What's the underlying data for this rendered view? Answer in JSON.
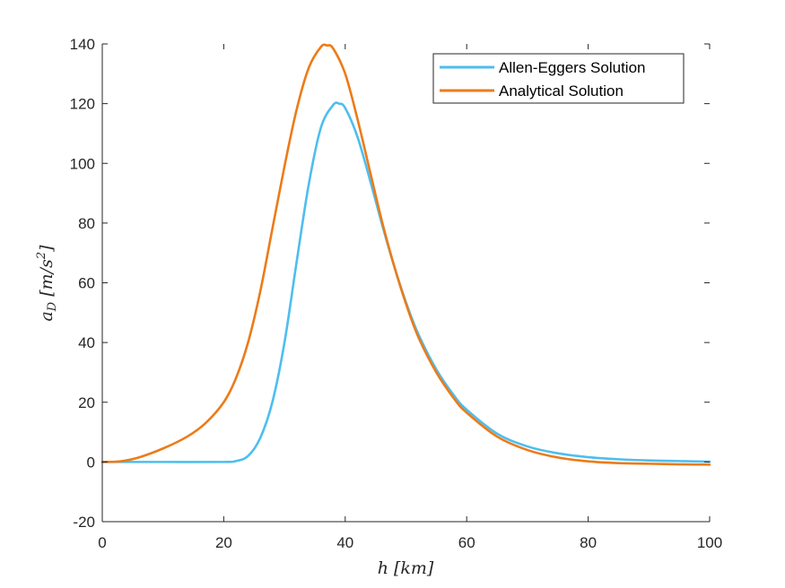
{
  "chart_data": {
    "type": "line",
    "xlabel": "h [km]",
    "ylabel": "a_D [m/s^2]",
    "xlabel_parts": {
      "var": "h",
      "unit": "[km]"
    },
    "ylabel_parts": {
      "var": "a",
      "sub": "D",
      "unit_open": "[m/s",
      "unit_sup": "2",
      "unit_close": "]"
    },
    "xlim": [
      0,
      100
    ],
    "ylim": [
      -20,
      140
    ],
    "xticks": [
      0,
      20,
      40,
      60,
      80,
      100
    ],
    "yticks": [
      -20,
      0,
      20,
      40,
      60,
      80,
      100,
      120,
      140
    ],
    "grid": false,
    "legend_location": "top-right",
    "series": [
      {
        "name": "Allen-Eggers Solution",
        "color": "#4DBEEE",
        "x": [
          0,
          10,
          20,
          22,
          24,
          26,
          28,
          30,
          32,
          34,
          36,
          38,
          39,
          40,
          42,
          44,
          46,
          48,
          50,
          52,
          55,
          58,
          60,
          65,
          70,
          75,
          80,
          85,
          90,
          95,
          100
        ],
        "y": [
          0,
          0,
          0,
          0.3,
          2,
          8,
          20,
          40,
          67,
          93,
          112,
          119.5,
          120,
          118.5,
          109,
          95,
          80,
          66,
          53.5,
          43,
          31,
          22,
          17.5,
          9.5,
          5.2,
          2.9,
          1.6,
          0.9,
          0.5,
          0.3,
          0.1
        ]
      },
      {
        "name": "Analytical Solution",
        "color": "#EC7B19",
        "x": [
          0,
          3,
          6,
          10,
          14,
          17,
          20,
          22,
          24,
          26,
          28,
          30,
          32,
          34,
          36,
          37,
          38,
          40,
          42,
          44,
          46,
          48,
          50,
          52,
          55,
          58,
          60,
          65,
          70,
          75,
          80,
          85,
          90,
          95,
          100
        ],
        "y": [
          0,
          0.2,
          1.5,
          4.5,
          8.5,
          13,
          20,
          28,
          40,
          57,
          78,
          99,
          118,
          132,
          139,
          139.5,
          138.5,
          130,
          115,
          98,
          81,
          66,
          53,
          42,
          30,
          21,
          16.5,
          8.5,
          4,
          1.5,
          0.2,
          -0.4,
          -0.6,
          -0.8,
          -0.9
        ]
      }
    ]
  }
}
